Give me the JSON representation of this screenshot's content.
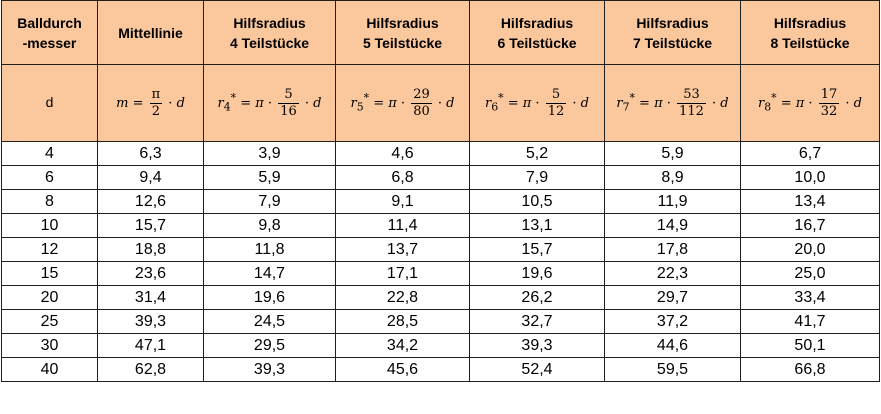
{
  "table": {
    "headers": [
      {
        "line1": "Balldurch",
        "line2": "-messer"
      },
      {
        "line1": "Mittellinie",
        "line2": ""
      },
      {
        "line1": "Hilfsradius",
        "line2": "4 Teilstücke"
      },
      {
        "line1": "Hilfsradius",
        "line2": "5 Teilstücke"
      },
      {
        "line1": "Hilfsradius",
        "line2": "6 Teilstücke"
      },
      {
        "line1": "Hilfsradius",
        "line2": "7 Teilstücke"
      },
      {
        "line1": "Hilfsradius",
        "line2": "8 Teilstücke"
      }
    ],
    "formulas": {
      "d": "d",
      "m": {
        "lhs": "m",
        "pi": "π",
        "num": "π",
        "den": "2",
        "var": "d"
      },
      "r4": {
        "lhs": "r",
        "sub": "4",
        "sup": "*",
        "pi": "π",
        "num": "5",
        "den": "16",
        "var": "d"
      },
      "r5": {
        "lhs": "r",
        "sub": "5",
        "sup": "*",
        "pi": "π",
        "num": "29",
        "den": "80",
        "var": "d"
      },
      "r6": {
        "lhs": "r",
        "sub": "6",
        "sup": "*",
        "pi": "π",
        "num": "5",
        "den": "12",
        "var": "d"
      },
      "r7": {
        "lhs": "r",
        "sub": "7",
        "sup": "*",
        "pi": "π",
        "num": "53",
        "den": "112",
        "var": "d"
      },
      "r8": {
        "lhs": "r",
        "sub": "8",
        "sup": "*",
        "pi": "π",
        "num": "17",
        "den": "32",
        "var": "d"
      }
    },
    "rows": [
      [
        "4",
        "6,3",
        "3,9",
        "4,6",
        "5,2",
        "5,9",
        "6,7"
      ],
      [
        "6",
        "9,4",
        "5,9",
        "6,8",
        "7,9",
        "8,9",
        "10,0"
      ],
      [
        "8",
        "12,6",
        "7,9",
        "9,1",
        "10,5",
        "11,9",
        "13,4"
      ],
      [
        "10",
        "15,7",
        "9,8",
        "11,4",
        "13,1",
        "14,9",
        "16,7"
      ],
      [
        "12",
        "18,8",
        "11,8",
        "13,7",
        "15,7",
        "17,8",
        "20,0"
      ],
      [
        "15",
        "23,6",
        "14,7",
        "17,1",
        "19,6",
        "22,3",
        "25,0"
      ],
      [
        "20",
        "31,4",
        "19,6",
        "22,8",
        "26,2",
        "29,7",
        "33,4"
      ],
      [
        "25",
        "39,3",
        "24,5",
        "28,5",
        "32,7",
        "37,2",
        "41,7"
      ],
      [
        "30",
        "47,1",
        "29,5",
        "34,2",
        "39,3",
        "44,6",
        "50,1"
      ],
      [
        "40",
        "62,8",
        "39,3",
        "45,6",
        "52,4",
        "59,5",
        "66,8"
      ]
    ]
  },
  "colors": {
    "header_bg": "#fbc79c",
    "border": "#1f1f1f"
  }
}
